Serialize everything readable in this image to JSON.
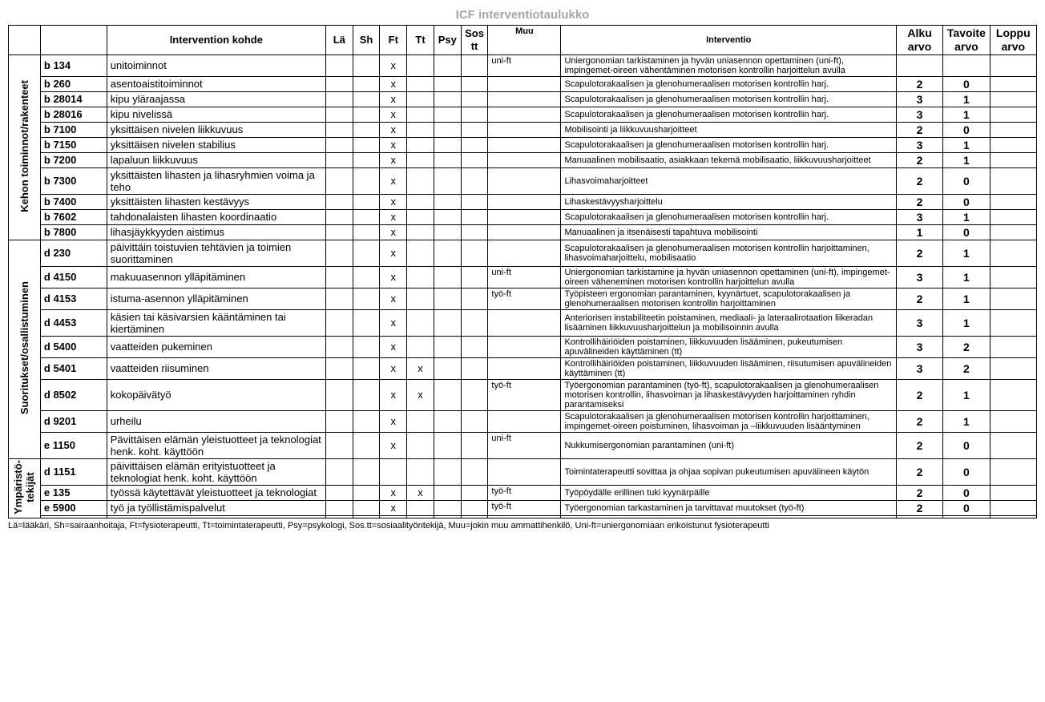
{
  "title": "ICF interventiotaulukko",
  "headers": {
    "target": "Intervention kohde",
    "la": "Lä",
    "sh": "Sh",
    "ft": "Ft",
    "tt": "Tt",
    "psy": "Psy",
    "sostt": "Sos\ntt",
    "muu": "Muu",
    "interventio": "Interventio",
    "alku": "Alku\narvo",
    "tavoite": "Tavoite\narvo",
    "loppu": "Loppu\narvo"
  },
  "sections": [
    {
      "label": "Kehon toiminnot/rakenteet",
      "rows": [
        {
          "code": "b 134",
          "target": "unitoiminnot",
          "ft": "x",
          "muu": "uni-ft",
          "interv": "Uniergonomian tarkistaminen ja hyvän uniasennon opettaminen (uni-ft), impingemet-oireen vähentäminen motorisen kontrollin harjoittelun avulla",
          "alku": "",
          "tav": "",
          "loppu": ""
        },
        {
          "code": "b 260",
          "target": "asentoaistitoiminnot",
          "ft": "x",
          "muu": "",
          "interv": "Scapulotorakaalisen ja glenohumeraalisen motorisen kontrollin harj.",
          "alku": "2",
          "tav": "0",
          "loppu": ""
        },
        {
          "code": "b 28014",
          "target": "kipu yläraajassa",
          "ft": "x",
          "muu": "",
          "interv": "Scapulotorakaalisen ja glenohumeraalisen motorisen kontrollin harj.",
          "alku": "3",
          "tav": "1",
          "loppu": ""
        },
        {
          "code": "b 28016",
          "target": "kipu nivelissä",
          "ft": "x",
          "muu": "",
          "interv": "Scapulotorakaalisen ja glenohumeraalisen motorisen kontrollin harj.",
          "alku": "3",
          "tav": "1",
          "loppu": ""
        },
        {
          "code": "b 7100",
          "target": "yksittäisen nivelen liikkuvuus",
          "ft": "x",
          "muu": "",
          "interv": "Mobilisointi ja liikkuvuusharjoitteet",
          "alku": "2",
          "tav": "0",
          "loppu": ""
        },
        {
          "code": "b 7150",
          "target": "yksittäisen nivelen stabilius",
          "ft": "x",
          "muu": "",
          "interv": "Scapulotorakaalisen ja glenohumeraalisen motorisen kontrollin harj.",
          "alku": "3",
          "tav": "1",
          "loppu": ""
        },
        {
          "code": "b 7200",
          "target": "lapaluun liikkuvuus",
          "ft": "x",
          "muu": "",
          "interv": "Manuaalinen mobilisaatio, asiakkaan tekemä mobilisaatio, liikkuvuusharjoitteet",
          "alku": "2",
          "tav": "1",
          "loppu": ""
        },
        {
          "code": "b 7300",
          "target": "yksittäisten lihasten ja lihasryhmien voima ja teho",
          "ft": "x",
          "muu": "",
          "interv": "Lihasvoimaharjoitteet",
          "alku": "2",
          "tav": "0",
          "loppu": ""
        },
        {
          "code": "b 7400",
          "target": "yksittäisten lihasten kestävyys",
          "ft": "x",
          "muu": "",
          "interv": "Lihaskestävyysharjoittelu",
          "alku": "2",
          "tav": "0",
          "loppu": ""
        },
        {
          "code": "b 7602",
          "target": "tahdonalaisten lihasten koordinaatio",
          "ft": "x",
          "muu": "",
          "interv": "Scapulotorakaalisen ja glenohumeraalisen motorisen kontrollin harj.",
          "alku": "3",
          "tav": "1",
          "loppu": ""
        },
        {
          "code": "b 7800",
          "target": "lihasjäykkyyden aistimus",
          "ft": "x",
          "muu": "",
          "interv": "Manuaalinen ja itsenäisesti tapahtuva mobilisointi",
          "alku": "1",
          "tav": "0",
          "loppu": ""
        }
      ]
    },
    {
      "label": "Suoritukset/osallistuminen",
      "rows": [
        {
          "code": "d 230",
          "target": "päivittäin toistuvien tehtävien ja toimien suorittaminen",
          "ft": "x",
          "muu": "",
          "interv": "Scapulotorakaalisen ja glenohumeraalisen motorisen kontrollin harjoittaminen, lihasvoimaharjoittelu, mobilisaatio",
          "alku": "2",
          "tav": "1",
          "loppu": ""
        },
        {
          "code": "d 4150",
          "target": "makuuasennon ylläpitäminen",
          "ft": "x",
          "muu": "uni-ft",
          "interv": "Uniergonomian tarkistamine ja hyvän uniasennon opettaminen (uni-ft), impingemet-oireen väheneminen motorisen kontrollin harjoittelun avulla",
          "alku": "3",
          "tav": "1",
          "loppu": ""
        },
        {
          "code": "d 4153",
          "target": "istuma-asennon ylläpitäminen",
          "ft": "x",
          "muu": "työ-ft",
          "interv": "Työpisteen ergonomian parantaminen, kyynärtuet, scapulotorakaalisen ja glenohumeraalisen motorisen kontrollin harjoittaminen",
          "alku": "2",
          "tav": "1",
          "loppu": ""
        },
        {
          "code": "d 4453",
          "target": "käsien tai käsivarsien kääntäminen tai kiertäminen",
          "ft": "x",
          "muu": "",
          "interv": "Anteriorisen instabiliteetin poistaminen, mediaali- ja lateraalirotaation liikeradan lisääminen liikkuvuusharjoittelun ja mobilisoinnin avulla",
          "alku": "3",
          "tav": "1",
          "loppu": ""
        },
        {
          "code": "d 5400",
          "target": "vaatteiden pukeminen",
          "ft": "x",
          "muu": "",
          "interv": "Kontrollihäiriöiden poistaminen, liikkuvuuden lisääminen, pukeutumisen apuvälineiden käyttäminen (tt)",
          "alku": "3",
          "tav": "2",
          "loppu": ""
        },
        {
          "code": "d 5401",
          "target": "vaatteiden riisuminen",
          "ft": "x",
          "tt": "x",
          "muu": "",
          "interv": "Kontrollihäiriöiden poistaminen, liikkuvuuden lisääminen, riisutumisen apuvälineiden käyttäminen (tt)",
          "alku": "3",
          "tav": "2",
          "loppu": ""
        },
        {
          "code": "d 8502",
          "target": "kokopäivätyö",
          "ft": "x",
          "tt": "x",
          "muu": "työ-ft",
          "interv": "Työergonomian parantaminen (työ-ft), scapulotorakaalisen ja glenohumeraalisen motorisen kontrollin, lihasvoiman ja lihaskestävyyden harjoittaminen ryhdin parantamiseksi",
          "alku": "2",
          "tav": "1",
          "loppu": ""
        },
        {
          "code": "d 9201",
          "target": "urheilu",
          "ft": "x",
          "muu": "",
          "interv": "Scapulotorakaalisen ja glenohumeraalisen motorisen kontrollin harjoittaminen, impingemet-oireen poistuminen, lihasvoiman ja –liikkuvuuden lisääntyminen",
          "alku": "2",
          "tav": "1",
          "loppu": ""
        },
        {
          "code": "e 1150",
          "target": "Pävittäisen elämän yleistuotteet ja teknologiat henk. koht. käyttöön",
          "ft": "x",
          "muu": "uni-ft",
          "interv": "Nukkumisergonomian parantaminen (uni-ft)",
          "alku": "2",
          "tav": "0",
          "loppu": ""
        }
      ]
    },
    {
      "label": "Ympäristö-\ntekijät",
      "rows": [
        {
          "code": "d 1151",
          "target": "päivittäisen elämän erityistuotteet ja teknologiat henk. koht. käyttöön",
          "muu": "",
          "interv": "Toimintaterapeutti sovittaa ja ohjaa sopivan pukeutumisen apuvälineen käytön",
          "alku": "2",
          "tav": "0",
          "loppu": ""
        },
        {
          "code": "e 135",
          "target": "työssä käytettävät yleistuotteet ja teknologiat",
          "ft": "x",
          "tt": "x",
          "muu": "työ-ft",
          "interv": "Työpöydälle erillinen tuki kyynärpäille",
          "alku": "2",
          "tav": "0",
          "loppu": ""
        },
        {
          "code": "e 5900",
          "target": "työ ja työllistämispalvelut",
          "ft": "x",
          "muu": "työ-ft",
          "interv": "Työergonomian tarkastaminen ja tarvittavat muutokset (työ-ft)",
          "alku": "2",
          "tav": "0",
          "loppu": ""
        },
        {
          "code": "",
          "target": "",
          "muu": "",
          "interv": "",
          "alku": "",
          "tav": "",
          "loppu": ""
        }
      ]
    }
  ],
  "footnote": "Lä=lääkäri, Sh=sairaanhoitaja, Ft=fysioterapeutti, Tt=toimintaterapeutti, Psy=psykologi, Sos.tt=sosiaalityöntekijä, Muu=jokin muu ammattihenkilö, Uni-ft=uniergonomiaan erikoistunut fysioterapeutti"
}
